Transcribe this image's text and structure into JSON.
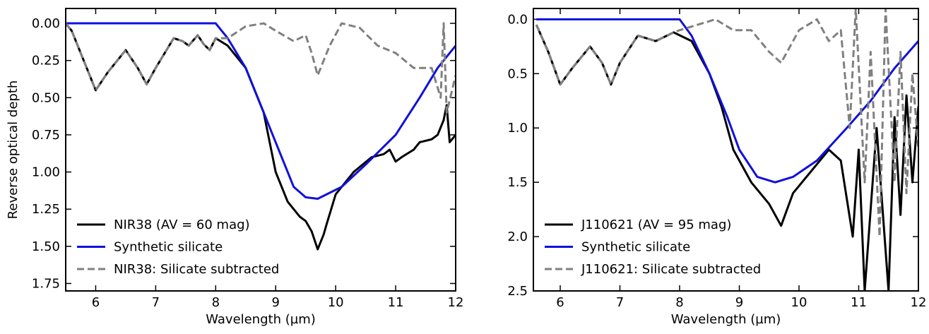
{
  "chart_data": [
    {
      "type": "line",
      "xlabel": "Wavelength (µm)",
      "ylabel": "Reverse optical depth",
      "xlim": [
        5.5,
        12
      ],
      "xticks": [
        6,
        7,
        8,
        9,
        10,
        11,
        12
      ],
      "ylim": [
        -0.1,
        1.8
      ],
      "y_inverted": true,
      "yticks": [
        {
          "value": 0,
          "label": "0.00"
        },
        0.25,
        {
          "value": 0.5,
          "label": "0.50"
        },
        0.75,
        {
          "value": 1,
          "label": "1.00"
        },
        1.25,
        {
          "value": 1.5,
          "label": "1.50"
        },
        1.75
      ],
      "legend": "lower left",
      "series": [
        {
          "name": "NIR38 (AV = 60 mag)",
          "color": "#000000",
          "linestyle": "solid",
          "x": [
            5.5,
            5.6,
            5.8,
            6.0,
            6.2,
            6.5,
            6.7,
            6.85,
            7.0,
            7.3,
            7.45,
            7.55,
            7.7,
            7.8,
            7.9,
            8.0,
            8.2,
            8.5,
            8.8,
            9.0,
            9.2,
            9.4,
            9.5,
            9.6,
            9.7,
            9.8,
            9.85,
            10.0,
            10.3,
            10.6,
            10.8,
            10.9,
            11.0,
            11.1,
            11.3,
            11.4,
            11.6,
            11.7,
            11.8,
            11.85,
            11.9,
            12.0
          ],
          "values": [
            0.0,
            0.05,
            0.25,
            0.45,
            0.33,
            0.18,
            0.3,
            0.41,
            0.3,
            0.1,
            0.12,
            0.15,
            0.08,
            0.14,
            0.18,
            0.1,
            0.15,
            0.3,
            0.6,
            1.0,
            1.2,
            1.3,
            1.33,
            1.4,
            1.52,
            1.42,
            1.35,
            1.15,
            1.0,
            0.9,
            0.88,
            0.85,
            0.93,
            0.9,
            0.85,
            0.8,
            0.78,
            0.75,
            0.65,
            0.55,
            0.8,
            0.75
          ]
        },
        {
          "name": "Synthetic silicate",
          "color": "#1010dd",
          "linestyle": "solid",
          "x": [
            5.5,
            8.0,
            8.2,
            8.5,
            8.8,
            9.1,
            9.3,
            9.5,
            9.7,
            10.1,
            10.5,
            11.0,
            11.4,
            11.7,
            12.0
          ],
          "values": [
            0.0,
            0.0,
            0.1,
            0.3,
            0.6,
            0.9,
            1.1,
            1.17,
            1.18,
            1.1,
            0.95,
            0.75,
            0.5,
            0.3,
            0.15
          ]
        },
        {
          "name": "NIR38: Silicate subtracted",
          "color": "#808080",
          "linestyle": "dashed",
          "x": [
            5.5,
            5.6,
            5.8,
            6.0,
            6.2,
            6.5,
            6.7,
            6.85,
            7.0,
            7.3,
            7.45,
            7.55,
            7.7,
            7.8,
            7.9,
            8.0,
            8.2,
            8.5,
            8.8,
            9.0,
            9.3,
            9.5,
            9.6,
            9.7,
            9.9,
            10.1,
            10.4,
            10.7,
            11.0,
            11.3,
            11.6,
            11.75,
            11.8,
            11.85,
            12.0
          ],
          "values": [
            0.0,
            0.05,
            0.25,
            0.45,
            0.33,
            0.18,
            0.3,
            0.41,
            0.3,
            0.1,
            0.12,
            0.15,
            0.08,
            0.14,
            0.18,
            0.1,
            0.1,
            0.02,
            0.0,
            0.05,
            0.12,
            0.08,
            0.2,
            0.35,
            0.15,
            0.0,
            0.03,
            0.15,
            0.2,
            0.3,
            0.3,
            0.5,
            0.0,
            0.6,
            0.35
          ]
        }
      ]
    },
    {
      "type": "line",
      "xlabel": "Wavelength (µm)",
      "xlim": [
        5.55,
        12
      ],
      "xticks": [
        6,
        7,
        8,
        9,
        10,
        11,
        12
      ],
      "ylim": [
        -0.1,
        2.5
      ],
      "y_inverted": true,
      "yticks": [
        {
          "value": 0,
          "label": "0.0"
        },
        0.5,
        {
          "value": 1,
          "label": "1.0"
        },
        1.5,
        {
          "value": 2,
          "label": "2.0"
        },
        2.5
      ],
      "legend": "lower left",
      "series": [
        {
          "name": "J110621 (AV = 95 mag)",
          "color": "#000000",
          "linestyle": "solid",
          "x": [
            5.6,
            5.8,
            6.0,
            6.2,
            6.5,
            6.7,
            6.85,
            7.0,
            7.3,
            7.6,
            7.9,
            8.2,
            8.5,
            8.7,
            8.9,
            9.2,
            9.5,
            9.7,
            9.9,
            10.2,
            10.5,
            10.7,
            10.9,
            11.0,
            11.1,
            11.3,
            11.5,
            11.6,
            11.7,
            11.8,
            11.9,
            12.0
          ],
          "values": [
            0.05,
            0.3,
            0.6,
            0.45,
            0.25,
            0.4,
            0.6,
            0.4,
            0.15,
            0.2,
            0.12,
            0.2,
            0.5,
            0.8,
            1.2,
            1.5,
            1.7,
            1.9,
            1.6,
            1.4,
            1.2,
            1.3,
            2.0,
            1.2,
            2.5,
            1.0,
            2.5,
            0.9,
            1.8,
            0.7,
            1.5,
            0.8
          ]
        },
        {
          "name": "Synthetic silicate",
          "color": "#1010dd",
          "linestyle": "solid",
          "x": [
            5.6,
            8.0,
            8.2,
            8.5,
            8.8,
            9.0,
            9.3,
            9.6,
            9.9,
            10.3,
            10.8,
            11.2,
            11.6,
            12.0
          ],
          "values": [
            0.0,
            0.0,
            0.15,
            0.5,
            0.9,
            1.2,
            1.45,
            1.5,
            1.45,
            1.3,
            1.0,
            0.75,
            0.45,
            0.2
          ]
        },
        {
          "name": "J110621: Silicate subtracted",
          "color": "#808080",
          "linestyle": "dashed",
          "x": [
            5.6,
            5.8,
            6.0,
            6.2,
            6.5,
            6.7,
            6.85,
            7.0,
            7.3,
            7.6,
            7.9,
            8.0,
            8.3,
            8.6,
            8.9,
            9.2,
            9.5,
            9.7,
            10.0,
            10.3,
            10.5,
            10.7,
            10.85,
            10.95,
            11.1,
            11.2,
            11.35,
            11.45,
            11.6,
            11.7,
            11.8,
            11.9,
            12.0
          ],
          "values": [
            0.05,
            0.3,
            0.6,
            0.45,
            0.25,
            0.4,
            0.6,
            0.4,
            0.15,
            0.2,
            0.12,
            0.1,
            0.05,
            0.0,
            0.1,
            0.1,
            0.3,
            0.4,
            0.1,
            0.0,
            0.2,
            0.1,
            1.0,
            -0.1,
            1.5,
            0.3,
            2.0,
            -0.1,
            1.5,
            0.3,
            1.6,
            0.5,
            1.2
          ]
        }
      ]
    }
  ]
}
